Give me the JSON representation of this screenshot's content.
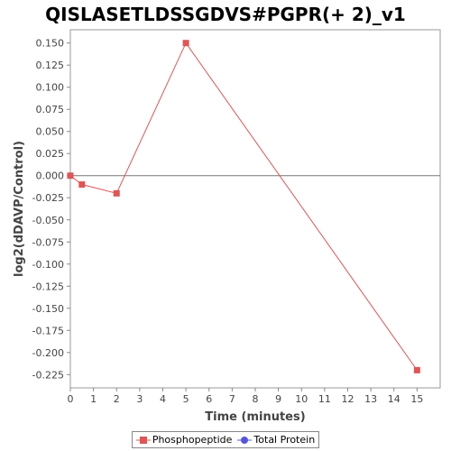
{
  "chart_data": {
    "type": "line",
    "title": "QISLASETLDSSGDVS#PGPR(+ 2)_v1",
    "xlabel": "Time (minutes)",
    "ylabel": "log2(dDAVP/Control)",
    "xlim": [
      0,
      16
    ],
    "ylim": [
      -0.24,
      0.165
    ],
    "xticks": [
      0,
      1,
      2,
      3,
      4,
      5,
      6,
      7,
      8,
      9,
      10,
      11,
      12,
      13,
      14,
      15
    ],
    "yticks": [
      0.15,
      0.125,
      0.1,
      0.075,
      0.05,
      0.025,
      0.0,
      -0.025,
      -0.05,
      -0.075,
      -0.1,
      -0.125,
      -0.15,
      -0.175,
      -0.2,
      -0.225
    ],
    "ytick_labels": [
      "0.150",
      "0.125",
      "0.100",
      "0.075",
      "0.050",
      "0.025",
      "0.000",
      "-0.025",
      "-0.050",
      "-0.075",
      "-0.100",
      "-0.125",
      "-0.150",
      "-0.175",
      "-0.200",
      "-0.225"
    ],
    "zero_line": true,
    "grid": false,
    "legend_position": "bottom",
    "series": [
      {
        "name": "Phosphopeptide",
        "color": "#e05555",
        "marker": "square",
        "x": [
          0,
          0.5,
          2,
          5,
          15
        ],
        "y": [
          0.0,
          -0.01,
          -0.02,
          0.15,
          -0.22
        ]
      },
      {
        "name": "Total Protein",
        "color": "#5555e0",
        "marker": "circle",
        "x": [],
        "y": []
      }
    ]
  }
}
